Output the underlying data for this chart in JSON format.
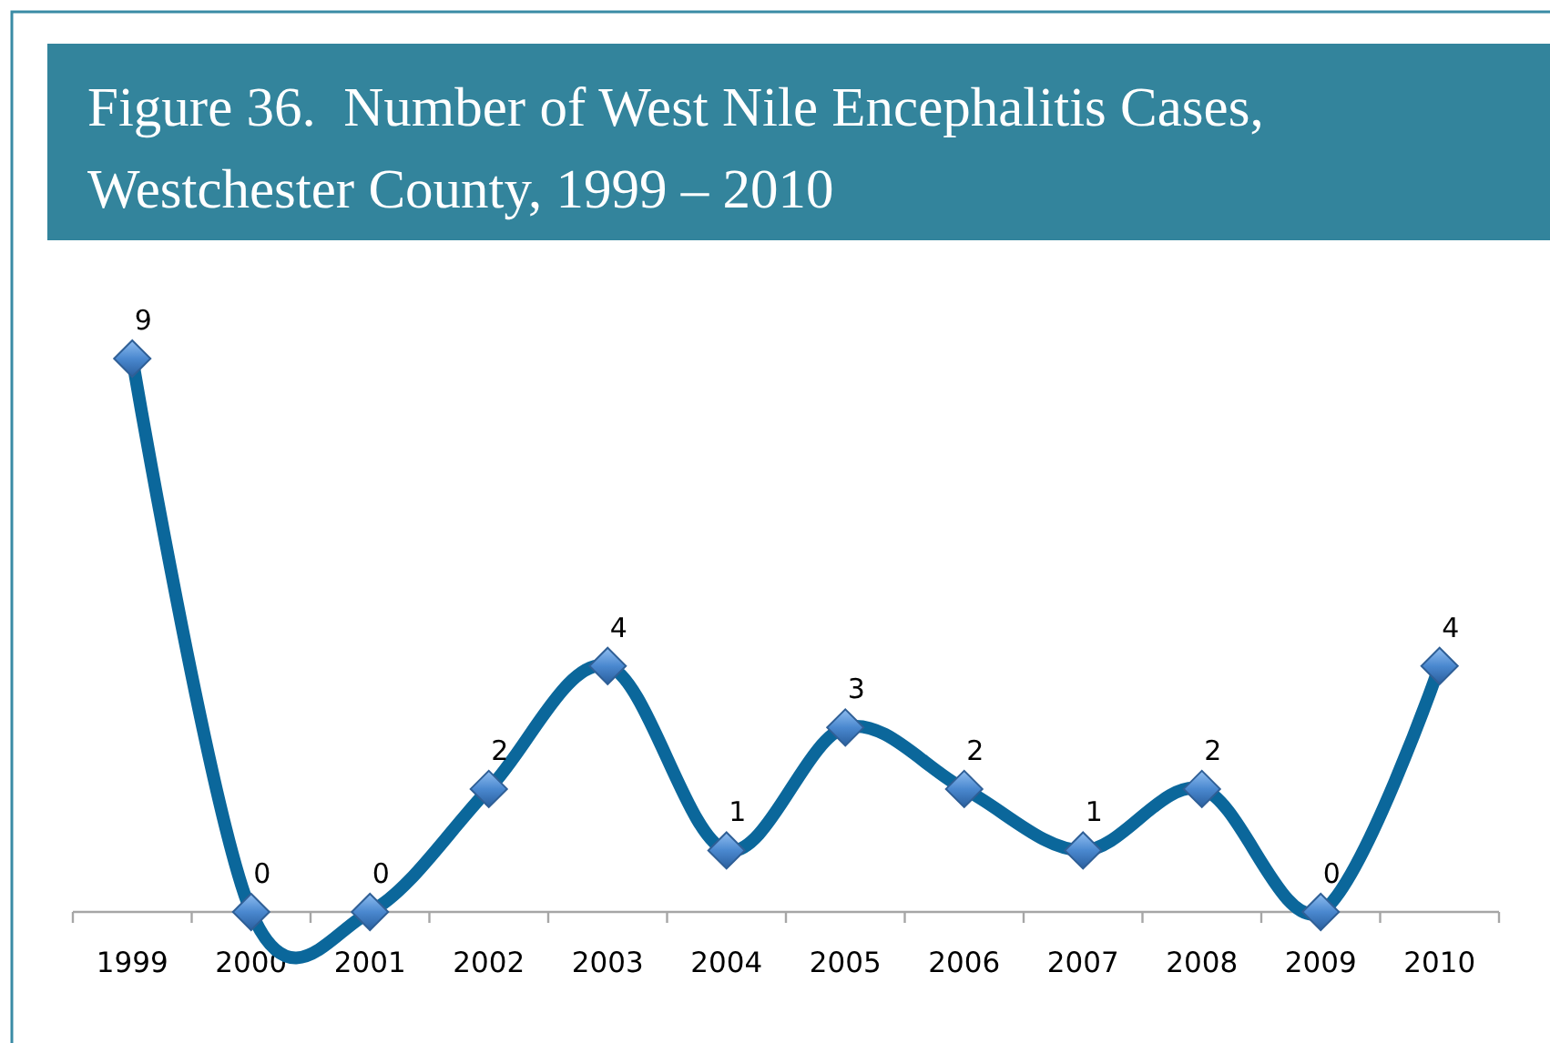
{
  "chart_data": {
    "type": "line",
    "title": "Figure 36.  Number of West Nile Encephalitis Cases,\nWestchester County, 1999 – 2010",
    "categories": [
      "1999",
      "2000",
      "2001",
      "2002",
      "2003",
      "2004",
      "2005",
      "2006",
      "2007",
      "2008",
      "2009",
      "2010"
    ],
    "series": [
      {
        "color": "#0b679b",
        "values": [
          9,
          0,
          0,
          2,
          4,
          1,
          3,
          2,
          1,
          2,
          0,
          4
        ]
      }
    ],
    "tick_labels": "x",
    "data_labels": true,
    "marker": "diamond",
    "line_style": "solid"
  }
}
